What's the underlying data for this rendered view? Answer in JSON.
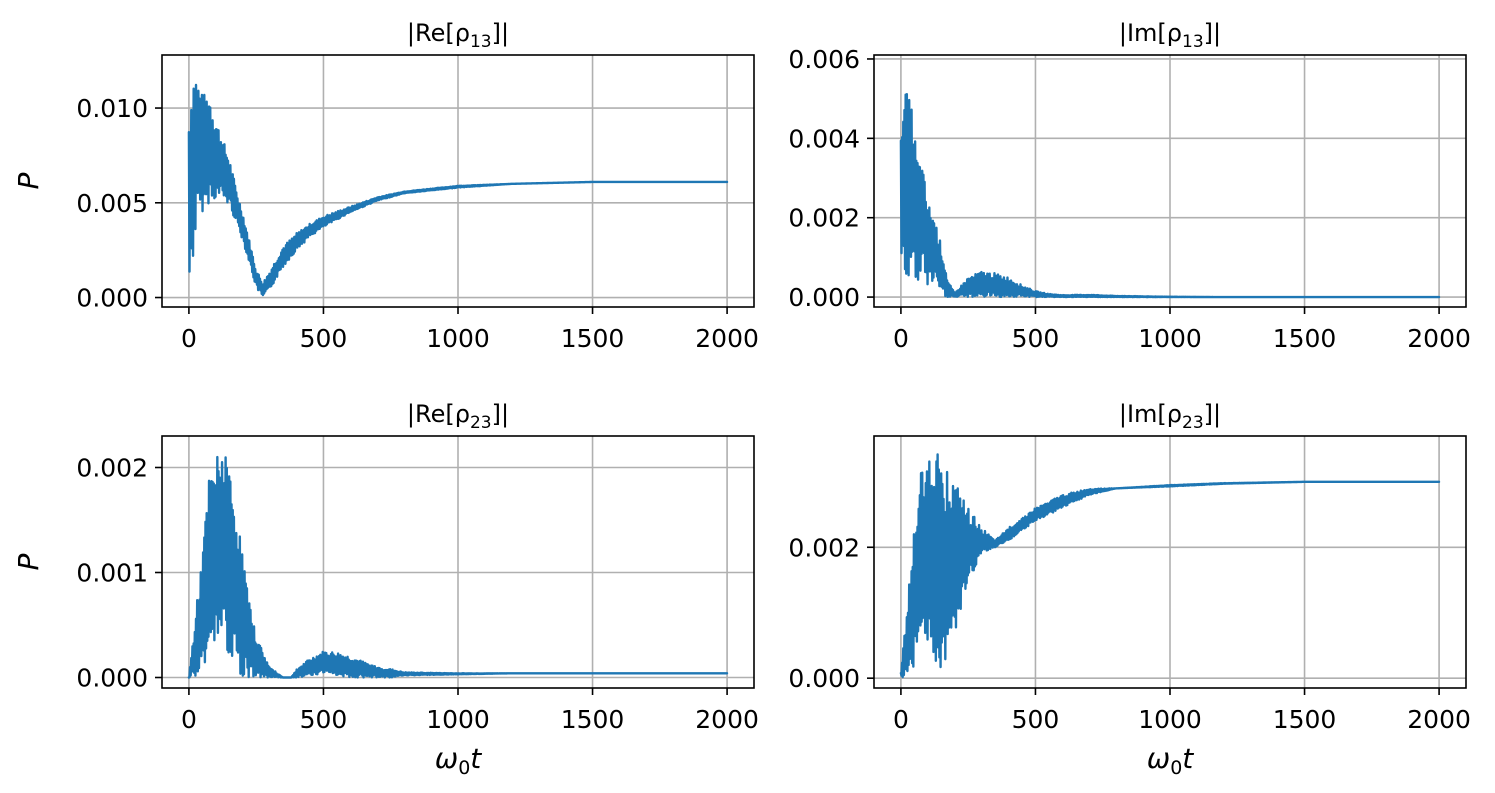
{
  "chart_data": [
    {
      "type": "line",
      "title": "|Re[ρ13]|",
      "xlabel": "",
      "ylabel": "P",
      "xlim": [
        -100,
        2100
      ],
      "ylim": [
        -0.0005,
        0.0128
      ],
      "xticks": [
        0,
        500,
        1000,
        1500,
        2000
      ],
      "xtick_labels": [
        "0",
        "500",
        "1000",
        "1500",
        "2000"
      ],
      "yticks": [
        0.0,
        0.005,
        0.01
      ],
      "ytick_labels": [
        "0.000",
        "0.005",
        "0.010"
      ],
      "grid": true,
      "series": [
        {
          "color": "#1f77b4",
          "envelope": {
            "x": [
              0,
              10,
              20,
              30,
              50,
              75,
              100,
              125,
              150,
              175,
              200,
              225,
              250,
              275,
              300,
              350,
              400,
              450,
              500,
              600,
              700,
              800,
              1000,
              1200,
              1500,
              2000
            ],
            "upper": [
              0.01,
              0.0115,
              0.0122,
              0.0118,
              0.0107,
              0.0109,
              0.0095,
              0.0084,
              0.0074,
              0.0058,
              0.0045,
              0.003,
              0.0015,
              0.0008,
              0.0014,
              0.0027,
              0.0034,
              0.0039,
              0.0043,
              0.0048,
              0.0053,
              0.0056,
              0.0059,
              0.006,
              0.0061,
              0.0061
            ],
            "lower": [
              0.0,
              0.0012,
              0.0025,
              0.004,
              0.0045,
              0.005,
              0.0052,
              0.0052,
              0.0048,
              0.004,
              0.003,
              0.0018,
              0.0005,
              0.0,
              0.0004,
              0.0016,
              0.0025,
              0.0032,
              0.0037,
              0.0045,
              0.0051,
              0.0055,
              0.0058,
              0.006,
              0.0061,
              0.0061
            ]
          }
        }
      ]
    },
    {
      "type": "line",
      "title": "|Im[ρ13]|",
      "xlabel": "",
      "ylabel": "",
      "xlim": [
        -100,
        2100
      ],
      "ylim": [
        -0.00025,
        0.0061
      ],
      "xticks": [
        0,
        500,
        1000,
        1500,
        2000
      ],
      "xtick_labels": [
        "0",
        "500",
        "1000",
        "1500",
        "2000"
      ],
      "yticks": [
        0.0,
        0.002,
        0.004,
        0.006
      ],
      "ytick_labels": [
        "0.000",
        "0.002",
        "0.004",
        "0.006"
      ],
      "grid": true,
      "series": [
        {
          "color": "#1f77b4",
          "envelope": {
            "x": [
              0,
              10,
              20,
              40,
              60,
              80,
              100,
              125,
              150,
              175,
              200,
              250,
              300,
              350,
              400,
              450,
              500,
              550,
              600,
              700,
              800,
              1000,
              1200,
              1500,
              2000
            ],
            "upper": [
              0.004,
              0.0058,
              0.0052,
              0.0048,
              0.0036,
              0.0033,
              0.0024,
              0.002,
              0.0013,
              0.0004,
              0.0001,
              0.0005,
              0.00065,
              0.0006,
              0.0005,
              0.0003,
              0.00015,
              8e-05,
              5e-05,
              6e-05,
              3e-05,
              1e-05,
              0.0,
              0.0,
              0.0
            ],
            "lower": [
              0.0,
              0.001,
              0.0,
              0.001,
              0.0,
              0.0008,
              0.0002,
              0.0004,
              0.0,
              0.0,
              0.0,
              0.0,
              0.0,
              0.0,
              0.0,
              0.0,
              0.0,
              0.0,
              0.0,
              0.0,
              0.0,
              0.0,
              0.0,
              0.0,
              0.0
            ]
          }
        }
      ]
    },
    {
      "type": "line",
      "title": "|Re[ρ23]|",
      "xlabel": "ω0t",
      "ylabel": "P",
      "xlim": [
        -100,
        2100
      ],
      "ylim": [
        -0.0001,
        0.0023
      ],
      "xticks": [
        0,
        500,
        1000,
        1500,
        2000
      ],
      "xtick_labels": [
        "0",
        "500",
        "1000",
        "1500",
        "2000"
      ],
      "yticks": [
        0.0,
        0.001,
        0.002
      ],
      "ytick_labels": [
        "0.000",
        "0.001",
        "0.002"
      ],
      "grid": true,
      "series": [
        {
          "color": "#1f77b4",
          "envelope": {
            "x": [
              0,
              25,
              50,
              75,
              100,
              125,
              150,
              175,
              200,
              225,
              250,
              300,
              350,
              380,
              400,
              450,
              500,
              550,
              600,
              650,
              700,
              750,
              800,
              1000,
              1200,
              1500,
              2000
            ],
            "upper": [
              0.0,
              0.0006,
              0.0012,
              0.0019,
              0.0021,
              0.0022,
              0.002,
              0.0016,
              0.0012,
              0.0007,
              0.0004,
              0.0001,
              0.0,
              0.0,
              8e-05,
              0.00018,
              0.00025,
              0.00024,
              0.0002,
              0.00015,
              0.0001,
              8e-05,
              5e-05,
              4e-05,
              4e-05,
              4e-05,
              4e-05
            ],
            "lower": [
              0.0,
              0.0,
              0.0001,
              0.0002,
              0.0003,
              0.0004,
              0.0002,
              0.0001,
              0.0,
              0.0,
              0.0,
              0.0,
              0.0,
              0.0,
              0.0,
              2e-05,
              4e-05,
              2e-05,
              0.0,
              0.0,
              0.0,
              0.0,
              2e-05,
              3e-05,
              4e-05,
              4e-05,
              4e-05
            ]
          }
        }
      ]
    },
    {
      "type": "line",
      "title": "|Im[ρ23]|",
      "xlabel": "ω0t",
      "ylabel": "",
      "xlim": [
        -100,
        2100
      ],
      "ylim": [
        -0.00015,
        0.0037
      ],
      "xticks": [
        0,
        500,
        1000,
        1500,
        2000
      ],
      "xtick_labels": [
        "0",
        "500",
        "1000",
        "1500",
        "2000"
      ],
      "yticks": [
        0.0,
        0.002
      ],
      "ytick_labels": [
        "0.000",
        "0.002"
      ],
      "grid": true,
      "series": [
        {
          "color": "#1f77b4",
          "envelope": {
            "x": [
              0,
              25,
              50,
              75,
              100,
              125,
              150,
              175,
              200,
              225,
              250,
              300,
              350,
              400,
              500,
              600,
              700,
              800,
              1000,
              1200,
              1500,
              2000
            ],
            "upper": [
              0.0001,
              0.0012,
              0.0023,
              0.0032,
              0.0034,
              0.0036,
              0.0033,
              0.0032,
              0.003,
              0.0028,
              0.0026,
              0.0023,
              0.0021,
              0.0023,
              0.0026,
              0.0028,
              0.0029,
              0.0029,
              0.00295,
              0.00298,
              0.003,
              0.003
            ],
            "lower": [
              0.0,
              0.0,
              0.0002,
              0.0005,
              0.0003,
              0.0002,
              0.0001,
              0.0004,
              0.0006,
              0.001,
              0.0014,
              0.0019,
              0.002,
              0.0021,
              0.0024,
              0.0026,
              0.0028,
              0.0029,
              0.00293,
              0.00297,
              0.003,
              0.003
            ]
          }
        }
      ]
    }
  ]
}
